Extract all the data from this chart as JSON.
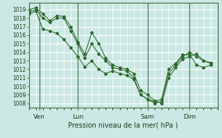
{
  "background_color": "#cce8e4",
  "grid_color": "#ffffff",
  "line_color": "#2d6b2d",
  "marker_color": "#2d6b2d",
  "xlabel": "Pression niveau de la mer( hPa )",
  "yticks": [
    1008,
    1009,
    1010,
    1011,
    1012,
    1013,
    1014,
    1015,
    1016,
    1017,
    1018,
    1019
  ],
  "ylim": [
    1007.5,
    1019.8
  ],
  "xlim": [
    0,
    27
  ],
  "xtick_positions": [
    1.5,
    7,
    17,
    23
  ],
  "xtick_labels": [
    "Ven",
    "Lun",
    "Sam",
    "Dim"
  ],
  "vlines": [
    1.5,
    7,
    17,
    23
  ],
  "series": [
    [
      1019.0,
      1019.2,
      1018.5,
      1017.7,
      1018.3,
      1018.2,
      1017.0,
      1015.2,
      1013.8,
      1016.3,
      1015.0,
      1013.3,
      1012.5,
      1012.2,
      1012.0,
      1011.5,
      1009.5,
      1009.0,
      1008.3,
      1008.0,
      1011.0,
      1012.2,
      1013.2,
      1013.5,
      1013.8,
      1013.0,
      1012.7
    ],
    [
      1018.7,
      1019.0,
      1018.0,
      1017.5,
      1018.0,
      1018.0,
      1016.5,
      1015.0,
      1013.3,
      1015.0,
      1013.8,
      1013.0,
      1012.2,
      1012.0,
      1011.8,
      1011.0,
      1009.0,
      1008.5,
      1008.0,
      1008.2,
      1011.5,
      1012.5,
      1013.5,
      1014.0,
      1013.5,
      1013.0,
      1012.8
    ],
    [
      1018.5,
      1018.8,
      1016.7,
      1016.5,
      1016.2,
      1015.5,
      1014.5,
      1013.5,
      1012.3,
      1013.0,
      1012.0,
      1011.5,
      1011.8,
      1011.5,
      1011.3,
      1010.8,
      1009.0,
      1008.5,
      1008.2,
      1008.5,
      1012.0,
      1012.7,
      1013.7,
      1013.7,
      1012.5,
      1012.2,
      1012.5
    ]
  ],
  "series_x": [
    [
      0,
      1,
      2,
      3,
      4,
      5,
      6,
      7,
      8,
      9,
      10,
      11,
      12,
      13,
      14,
      15,
      16,
      17,
      18,
      19,
      20,
      21,
      22,
      23,
      24,
      25,
      26
    ],
    [
      0,
      1,
      2,
      3,
      4,
      5,
      6,
      7,
      8,
      9,
      10,
      11,
      12,
      13,
      14,
      15,
      16,
      17,
      18,
      19,
      20,
      21,
      22,
      23,
      24,
      25,
      26
    ],
    [
      0,
      1,
      2,
      3,
      4,
      5,
      6,
      7,
      8,
      9,
      10,
      11,
      12,
      13,
      14,
      15,
      16,
      17,
      18,
      19,
      20,
      21,
      22,
      23,
      24,
      25,
      26
    ]
  ]
}
